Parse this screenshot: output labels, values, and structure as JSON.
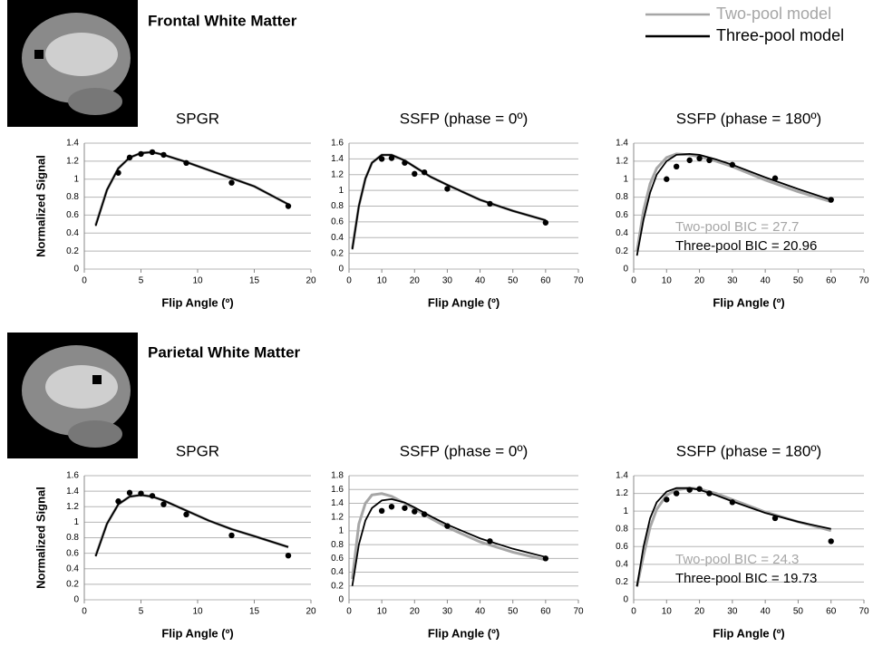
{
  "sections": [
    {
      "title": "Frontal White Matter"
    },
    {
      "title": "Parietal White Matter"
    }
  ],
  "legend": [
    {
      "name": "Two-pool model",
      "color": "#a6a6a6"
    },
    {
      "name": "Three-pool model",
      "color": "#000000"
    }
  ],
  "chart_data": [
    {
      "type": "line",
      "title": "SPGR",
      "xlabel": "Flip Angle (º)",
      "ylabel": "Normalized Signal",
      "xlim": [
        0,
        20
      ],
      "xticks": [
        0,
        5,
        10,
        15,
        20
      ],
      "ylim": [
        0,
        1.4
      ],
      "yticks": [
        0,
        0.2,
        0.4,
        0.6,
        0.8,
        1,
        1.2,
        1.4
      ],
      "grid": true,
      "x": [
        1,
        2,
        3,
        4,
        5,
        6,
        7,
        9,
        11,
        13,
        15,
        18
      ],
      "series": [
        {
          "color": "#a6a6a6",
          "values": [
            0.49,
            0.88,
            1.12,
            1.24,
            1.29,
            1.3,
            1.27,
            1.19,
            1.1,
            1.01,
            0.92,
            0.72
          ]
        },
        {
          "color": "#000000",
          "values": [
            0.48,
            0.88,
            1.12,
            1.24,
            1.29,
            1.3,
            1.27,
            1.19,
            1.1,
            1.01,
            0.92,
            0.72
          ]
        }
      ],
      "scatter": {
        "color": "#000000",
        "x": [
          3,
          4,
          5,
          6,
          7,
          9,
          13,
          18
        ],
        "values": [
          1.07,
          1.24,
          1.28,
          1.3,
          1.27,
          1.18,
          0.96,
          0.7
        ]
      }
    },
    {
      "type": "line",
      "title": "SSFP (phase = 0º)",
      "xlabel": "Flip Angle (º)",
      "xlim": [
        0,
        70
      ],
      "xticks": [
        0,
        10,
        20,
        30,
        40,
        50,
        60,
        70
      ],
      "ylim": [
        0,
        1.6
      ],
      "yticks": [
        0,
        0.2,
        0.4,
        0.6,
        0.8,
        1,
        1.2,
        1.4,
        1.6
      ],
      "grid": true,
      "x": [
        1,
        3,
        5,
        7,
        10,
        13,
        17,
        20,
        25,
        30,
        40,
        50,
        60
      ],
      "series": [
        {
          "color": "#a6a6a6",
          "values": [
            0.26,
            0.8,
            1.15,
            1.35,
            1.45,
            1.45,
            1.38,
            1.3,
            1.17,
            1.07,
            0.88,
            0.74,
            0.62
          ]
        },
        {
          "color": "#000000",
          "values": [
            0.25,
            0.8,
            1.15,
            1.35,
            1.45,
            1.45,
            1.38,
            1.3,
            1.17,
            1.07,
            0.88,
            0.74,
            0.62
          ]
        }
      ],
      "scatter": {
        "color": "#000000",
        "x": [
          10,
          13,
          17,
          20,
          23,
          30,
          43,
          60
        ],
        "values": [
          1.4,
          1.41,
          1.35,
          1.21,
          1.23,
          1.02,
          0.83,
          0.59
        ]
      }
    },
    {
      "type": "line",
      "title": "SSFP (phase = 180º)",
      "xlabel": "Flip Angle (º)",
      "xlim": [
        0,
        70
      ],
      "xticks": [
        0,
        10,
        20,
        30,
        40,
        50,
        60,
        70
      ],
      "ylim": [
        0,
        1.4
      ],
      "yticks": [
        0,
        0.2,
        0.4,
        0.6,
        0.8,
        1,
        1.2,
        1.4
      ],
      "grid": true,
      "x": [
        1,
        3,
        5,
        7,
        10,
        13,
        17,
        20,
        25,
        30,
        40,
        50,
        60
      ],
      "series": [
        {
          "color": "#a6a6a6",
          "values": [
            0.2,
            0.65,
            0.95,
            1.12,
            1.24,
            1.28,
            1.27,
            1.25,
            1.2,
            1.14,
            0.99,
            0.86,
            0.75
          ]
        },
        {
          "color": "#000000",
          "values": [
            0.15,
            0.55,
            0.85,
            1.05,
            1.2,
            1.27,
            1.28,
            1.27,
            1.22,
            1.16,
            1.02,
            0.89,
            0.77
          ]
        }
      ],
      "scatter": {
        "color": "#000000",
        "x": [
          10,
          13,
          17,
          20,
          23,
          30,
          43,
          60
        ],
        "values": [
          1.0,
          1.14,
          1.21,
          1.23,
          1.21,
          1.16,
          1.01,
          0.77
        ]
      },
      "annotations": [
        {
          "text": "Two-pool BIC = 27.7",
          "color": "#a6a6a6"
        },
        {
          "text": "Three-pool BIC = 20.96",
          "color": "#000000"
        }
      ]
    },
    {
      "type": "line",
      "title": "SPGR",
      "xlabel": "Flip Angle (º)",
      "ylabel": "Normalized Signal",
      "xlim": [
        0,
        20
      ],
      "xticks": [
        0,
        5,
        10,
        15,
        20
      ],
      "ylim": [
        0,
        1.6
      ],
      "yticks": [
        0,
        0.2,
        0.4,
        0.6,
        0.8,
        1,
        1.2,
        1.4,
        1.6
      ],
      "grid": true,
      "x": [
        1,
        2,
        3,
        4,
        5,
        6,
        7,
        9,
        11,
        13,
        15,
        18
      ],
      "series": [
        {
          "color": "#a6a6a6",
          "values": [
            0.57,
            0.98,
            1.23,
            1.33,
            1.35,
            1.33,
            1.28,
            1.15,
            1.02,
            0.91,
            0.82,
            0.68
          ]
        },
        {
          "color": "#000000",
          "values": [
            0.56,
            0.98,
            1.23,
            1.33,
            1.35,
            1.33,
            1.28,
            1.15,
            1.02,
            0.91,
            0.82,
            0.68
          ]
        }
      ],
      "scatter": {
        "color": "#000000",
        "x": [
          3,
          4,
          5,
          6,
          7,
          9,
          13,
          18
        ],
        "values": [
          1.27,
          1.38,
          1.37,
          1.34,
          1.23,
          1.1,
          0.83,
          0.57
        ]
      }
    },
    {
      "type": "line",
      "title": "SSFP (phase = 0º)",
      "xlabel": "Flip Angle (º)",
      "xlim": [
        0,
        70
      ],
      "xticks": [
        0,
        10,
        20,
        30,
        40,
        50,
        60,
        70
      ],
      "ylim": [
        0,
        1.8
      ],
      "yticks": [
        0,
        0.2,
        0.4,
        0.6,
        0.8,
        1,
        1.2,
        1.4,
        1.6,
        1.8
      ],
      "grid": true,
      "x": [
        1,
        3,
        5,
        7,
        10,
        13,
        17,
        20,
        25,
        30,
        40,
        50,
        60
      ],
      "series": [
        {
          "color": "#a6a6a6",
          "values": [
            0.3,
            1.1,
            1.4,
            1.52,
            1.54,
            1.5,
            1.4,
            1.32,
            1.18,
            1.05,
            0.84,
            0.69,
            0.58
          ]
        },
        {
          "color": "#000000",
          "values": [
            0.2,
            0.8,
            1.15,
            1.33,
            1.44,
            1.46,
            1.41,
            1.34,
            1.21,
            1.09,
            0.89,
            0.74,
            0.62
          ]
        }
      ],
      "scatter": {
        "color": "#000000",
        "x": [
          10,
          13,
          17,
          20,
          23,
          30,
          43,
          60
        ],
        "values": [
          1.29,
          1.35,
          1.33,
          1.28,
          1.24,
          1.07,
          0.85,
          0.6
        ]
      }
    },
    {
      "type": "line",
      "title": "SSFP (phase = 180º)",
      "xlabel": "Flip Angle (º)",
      "xlim": [
        0,
        70
      ],
      "xticks": [
        0,
        10,
        20,
        30,
        40,
        50,
        60,
        70
      ],
      "ylim": [
        0,
        1.4
      ],
      "yticks": [
        0,
        0.2,
        0.4,
        0.6,
        0.8,
        1,
        1.2,
        1.4
      ],
      "grid": true,
      "x": [
        1,
        3,
        5,
        7,
        10,
        13,
        17,
        20,
        25,
        30,
        40,
        50,
        60
      ],
      "series": [
        {
          "color": "#a6a6a6",
          "values": [
            0.15,
            0.5,
            0.82,
            1.02,
            1.18,
            1.24,
            1.26,
            1.25,
            1.2,
            1.13,
            0.99,
            0.88,
            0.78
          ]
        },
        {
          "color": "#000000",
          "values": [
            0.15,
            0.6,
            0.92,
            1.1,
            1.22,
            1.26,
            1.26,
            1.24,
            1.18,
            1.11,
            0.98,
            0.88,
            0.8
          ]
        }
      ],
      "scatter": {
        "color": "#000000",
        "x": [
          10,
          13,
          17,
          20,
          23,
          30,
          43,
          60
        ],
        "values": [
          1.13,
          1.2,
          1.24,
          1.25,
          1.2,
          1.1,
          0.92,
          0.66
        ]
      },
      "annotations": [
        {
          "text": "Two-pool BIC = 24.3",
          "color": "#a6a6a6"
        },
        {
          "text": "Three-pool BIC = 19.73",
          "color": "#000000"
        }
      ]
    }
  ]
}
